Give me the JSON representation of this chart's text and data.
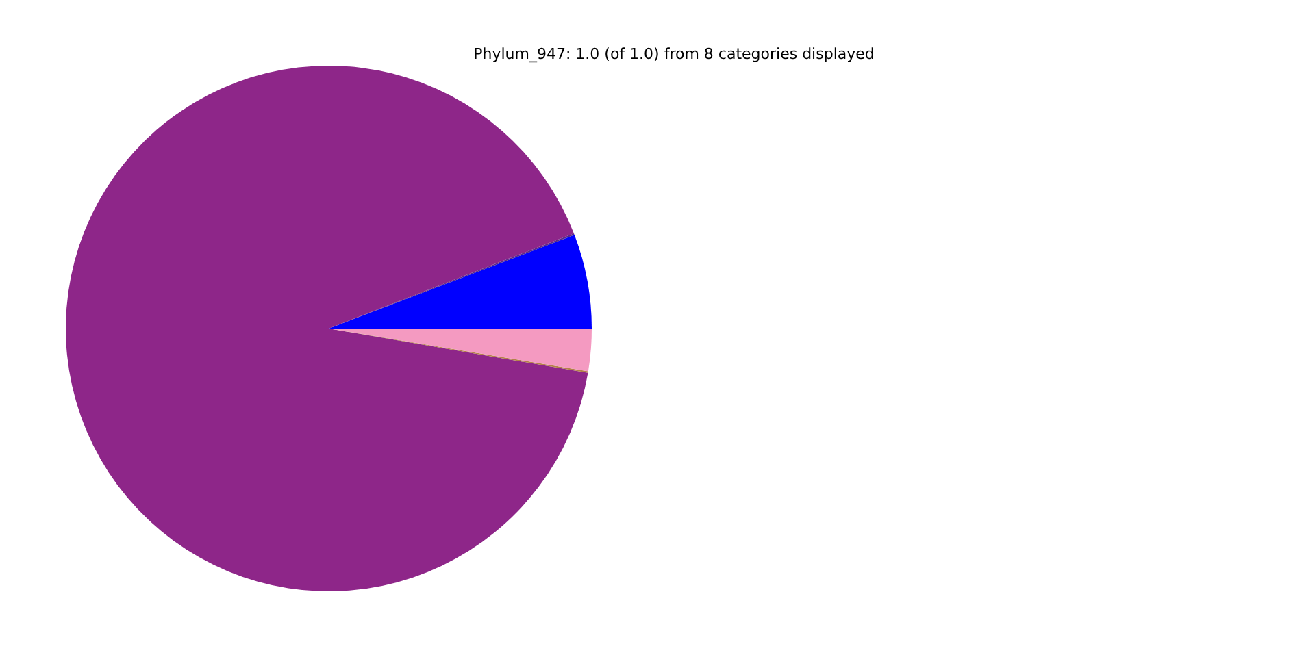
{
  "chart_data": {
    "type": "pie",
    "title": "Phylum_947: 1.0 (of 1.0) from 8 categories displayed",
    "categories": [
      null,
      null,
      null,
      null,
      null
    ],
    "values": [
      5.8,
      0.1,
      91.4,
      0.1,
      2.6
    ],
    "colors": [
      "#0000ff",
      "#5a2a8a",
      "#8e2689",
      "#b5804a",
      "#f49ac1"
    ]
  }
}
